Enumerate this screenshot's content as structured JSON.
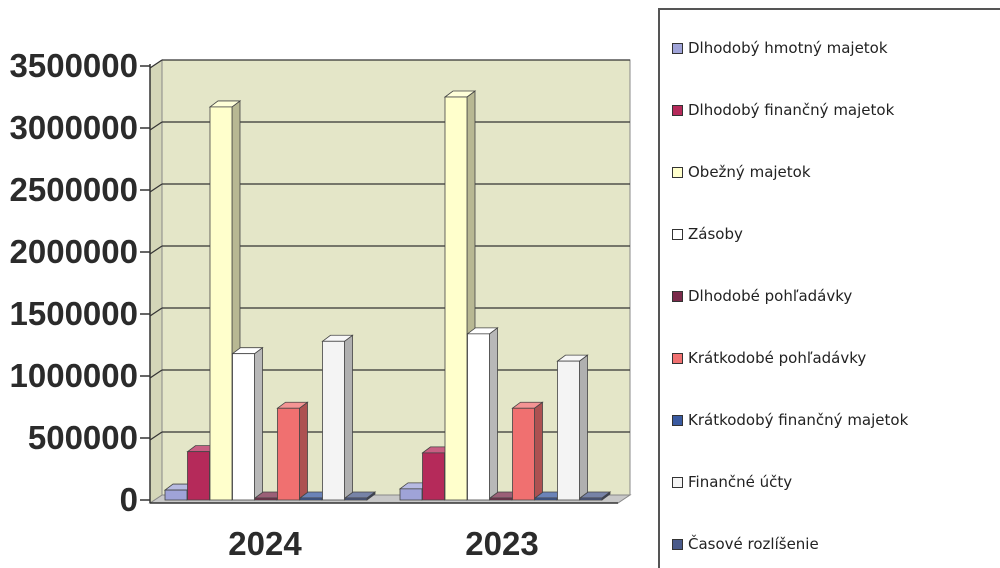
{
  "chart_data": {
    "type": "bar",
    "categories": [
      "2024",
      "2023"
    ],
    "ylim": [
      0,
      3500000
    ],
    "yticks": [
      "3500000",
      "3000000",
      "2500000",
      "2000000",
      "1500000",
      "1000000",
      "500000",
      "0"
    ],
    "grid": true,
    "legend_position": "right",
    "series": [
      {
        "name": "Dlhodobý hmotný majetok",
        "color": "#9fa3d8",
        "values": [
          80000,
          90000
        ]
      },
      {
        "name": "Dlhodobý finančný majetok",
        "color": "#b52a5a",
        "values": [
          390000,
          380000
        ]
      },
      {
        "name": "Obežný majetok",
        "color": "#ffffcc",
        "values": [
          3170000,
          3250000
        ]
      },
      {
        "name": "Zásoby",
        "color": "#ffffff",
        "values": [
          1180000,
          1340000
        ]
      },
      {
        "name": "Dlhodobé pohľadávky",
        "color": "#7a2a4a",
        "values": [
          0,
          0
        ]
      },
      {
        "name": "Krátkodobé pohľadávky",
        "color": "#f07070",
        "values": [
          740000,
          740000
        ]
      },
      {
        "name": "Krátkodobý finančný majetok",
        "color": "#3a5aa0",
        "values": [
          0,
          0
        ]
      },
      {
        "name": "Finančné účty",
        "color": "#f4f4f4",
        "values": [
          1280000,
          1120000
        ]
      },
      {
        "name": "Časové rozlíšenie",
        "color": "#4a5a8a",
        "values": [
          0,
          0
        ]
      }
    ]
  }
}
